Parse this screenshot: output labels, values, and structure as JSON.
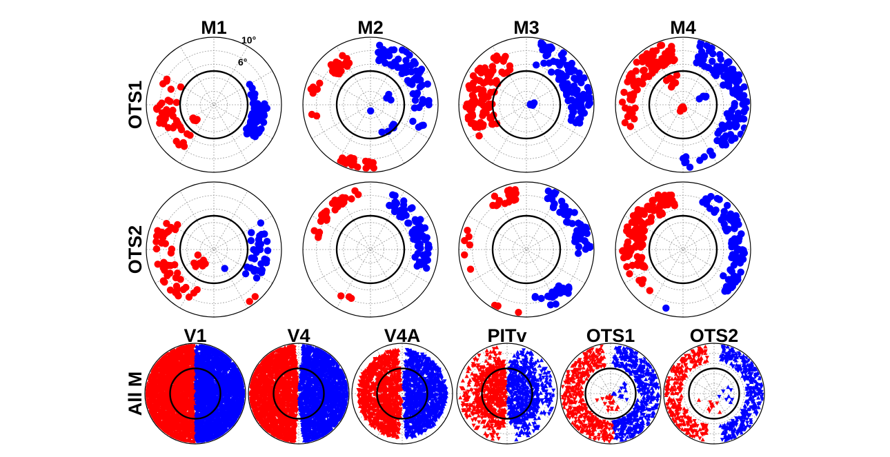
{
  "colors": {
    "contra": "#ff0000",
    "ipsi": "#0000ff",
    "ring": "#000000",
    "grid": "#9a9a9a"
  },
  "chart_data": {
    "type": "scatter",
    "coordinates": "polar",
    "rows": [
      "OTS1",
      "OTS2",
      "All M"
    ],
    "columns_top": [
      "M1",
      "M2",
      "M3",
      "M4"
    ],
    "columns_bottom": [
      "V1",
      "V4",
      "V4A",
      "PITv",
      "OTS1",
      "OTS2"
    ],
    "eccentricity_ticks": [
      "6°",
      "10°"
    ],
    "r_max_deg": 10,
    "reference_ring_deg": 5,
    "grid": true,
    "marker_top": "circle",
    "marker_bottom": "triangle",
    "panels": [
      {
        "row": "OTS1",
        "col": "M1",
        "clusters": [
          {
            "color": "contra",
            "n": 38,
            "ang": [
              150,
              235
            ],
            "rad": [
              5.5,
              8.6
            ]
          },
          {
            "color": "contra",
            "n": 6,
            "ang": [
              205,
              225
            ],
            "rad": [
              3.0,
              3.8
            ]
          },
          {
            "color": "ipsi",
            "n": 58,
            "ang": [
              -42,
              2
            ],
            "rad": [
              5.8,
              8.0
            ]
          },
          {
            "color": "ipsi",
            "n": 8,
            "ang": [
              5,
              30
            ],
            "rad": [
              5.5,
              6.3
            ]
          }
        ]
      },
      {
        "row": "OTS1",
        "col": "M2",
        "clusters": [
          {
            "color": "contra",
            "n": 26,
            "ang": [
              112,
              140
            ],
            "rad": [
              6.5,
              8.6
            ]
          },
          {
            "color": "contra",
            "n": 7,
            "ang": [
              150,
              195
            ],
            "rad": [
              8.0,
              9.3
            ]
          },
          {
            "color": "contra",
            "n": 24,
            "ang": [
              235,
              275
            ],
            "rad": [
              8.3,
              9.6
            ]
          },
          {
            "color": "ipsi",
            "n": 70,
            "ang": [
              -25,
              82
            ],
            "rad": [
              6.5,
              9.5
            ]
          },
          {
            "color": "ipsi",
            "n": 6,
            "ang": [
              -70,
              -40
            ],
            "rad": [
              4.0,
              6.0
            ]
          },
          {
            "color": "ipsi",
            "n": 3,
            "ang": [
              5,
              30
            ],
            "rad": [
              2.5,
              3.8
            ]
          },
          {
            "color": "ipsi",
            "n": 1,
            "ang": [
              -95,
              -85
            ],
            "rad": [
              0.8,
              1.2
            ]
          }
        ]
      },
      {
        "row": "OTS1",
        "col": "M3",
        "clusters": [
          {
            "color": "contra",
            "n": 95,
            "ang": [
              112,
              215
            ],
            "rad": [
              5.0,
              9.0
            ]
          },
          {
            "color": "ipsi",
            "n": 95,
            "ang": [
              -20,
              78
            ],
            "rad": [
              6.0,
              9.5
            ]
          },
          {
            "color": "ipsi",
            "n": 5,
            "ang": [
              -10,
              15
            ],
            "rad": [
              0.3,
              1.2
            ]
          }
        ]
      },
      {
        "row": "OTS1",
        "col": "M4",
        "clusters": [
          {
            "color": "contra",
            "n": 70,
            "ang": [
              100,
              160
            ],
            "rad": [
              6.5,
              9.5
            ]
          },
          {
            "color": "contra",
            "n": 18,
            "ang": [
              160,
              205
            ],
            "rad": [
              7.0,
              9.0
            ]
          },
          {
            "color": "contra",
            "n": 8,
            "ang": [
              100,
              130
            ],
            "rad": [
              3.0,
              5.0
            ]
          },
          {
            "color": "contra",
            "n": 8,
            "ang": [
              240,
              285
            ],
            "rad": [
              0.3,
              1.3
            ]
          },
          {
            "color": "ipsi",
            "n": 110,
            "ang": [
              -50,
              75
            ],
            "rad": [
              6.5,
              9.7
            ]
          },
          {
            "color": "ipsi",
            "n": 12,
            "ang": [
              -92,
              -55
            ],
            "rad": [
              7.5,
              9.5
            ]
          },
          {
            "color": "ipsi",
            "n": 4,
            "ang": [
              15,
              40
            ],
            "rad": [
              2.5,
              4.0
            ]
          }
        ]
      },
      {
        "row": "OTS2",
        "col": "M1",
        "clusters": [
          {
            "color": "contra",
            "n": 45,
            "ang": [
              145,
              255
            ],
            "rad": [
              6.2,
              8.8
            ]
          },
          {
            "color": "contra",
            "n": 8,
            "ang": [
              195,
              240
            ],
            "rad": [
              2.0,
              3.8
            ]
          },
          {
            "color": "contra",
            "n": 2,
            "ang": [
              302,
              312
            ],
            "rad": [
              9.0,
              9.6
            ]
          },
          {
            "color": "ipsi",
            "n": 32,
            "ang": [
              -40,
              30
            ],
            "rad": [
              5.5,
              8.0
            ]
          },
          {
            "color": "ipsi",
            "n": 1,
            "ang": [
              -65,
              -60
            ],
            "rad": [
              3.0,
              3.4
            ]
          }
        ]
      },
      {
        "row": "OTS2",
        "col": "M2",
        "clusters": [
          {
            "color": "contra",
            "n": 30,
            "ang": [
              102,
              172
            ],
            "rad": [
              7.8,
              9.0
            ]
          },
          {
            "color": "contra",
            "n": 3,
            "ang": [
              235,
              255
            ],
            "rad": [
              7.5,
              8.3
            ]
          },
          {
            "color": "ipsi",
            "n": 80,
            "ang": [
              -20,
              68
            ],
            "rad": [
              6.5,
              8.8
            ]
          }
        ]
      },
      {
        "row": "OTS2",
        "col": "M3",
        "clusters": [
          {
            "color": "contra",
            "n": 18,
            "ang": [
              100,
              130
            ],
            "rad": [
              7.5,
              9.2
            ]
          },
          {
            "color": "contra",
            "n": 6,
            "ang": [
              160,
              210
            ],
            "rad": [
              8.3,
              9.3
            ]
          },
          {
            "color": "contra",
            "n": 4,
            "ang": [
              240,
              268
            ],
            "rad": [
              9.2,
              9.7
            ]
          },
          {
            "color": "ipsi",
            "n": 55,
            "ang": [
              -5,
              72
            ],
            "rad": [
              7.0,
              9.6
            ]
          },
          {
            "color": "ipsi",
            "n": 20,
            "ang": [
              -85,
              -40
            ],
            "rad": [
              7.0,
              9.3
            ]
          }
        ]
      },
      {
        "row": "OTS2",
        "col": "M4",
        "clusters": [
          {
            "color": "contra",
            "n": 110,
            "ang": [
              100,
              205
            ],
            "rad": [
              6.0,
              9.0
            ]
          },
          {
            "color": "contra",
            "n": 4,
            "ang": [
              215,
              240
            ],
            "rad": [
              7.0,
              8.0
            ]
          },
          {
            "color": "ipsi",
            "n": 75,
            "ang": [
              -45,
              70
            ],
            "rad": [
              7.0,
              9.3
            ]
          },
          {
            "color": "ipsi",
            "n": 1,
            "ang": [
              -108,
              -100
            ],
            "rad": [
              8.8,
              9.2
            ]
          }
        ]
      },
      {
        "row": "All M",
        "col": "V1",
        "clusters": [
          {
            "color": "contra",
            "n": 2600,
            "ang": [
              91,
              269
            ],
            "rad": [
              0.0,
              9.8
            ],
            "fill": true
          },
          {
            "color": "ipsi",
            "n": 2600,
            "ang": [
              -89,
              89
            ],
            "rad": [
              0.0,
              9.8
            ],
            "fill": true
          }
        ]
      },
      {
        "row": "All M",
        "col": "V4",
        "clusters": [
          {
            "color": "contra",
            "n": 2000,
            "ang": [
              95,
              265
            ],
            "rad": [
              0.5,
              9.8
            ],
            "fill": true
          },
          {
            "color": "ipsi",
            "n": 2000,
            "ang": [
              -85,
              85
            ],
            "rad": [
              0.5,
              9.8
            ],
            "fill": true
          }
        ]
      },
      {
        "row": "All M",
        "col": "V4A",
        "clusters": [
          {
            "color": "contra",
            "n": 1100,
            "ang": [
              95,
              265
            ],
            "rad": [
              0.8,
              8.8
            ],
            "fill": true
          },
          {
            "color": "ipsi",
            "n": 1100,
            "ang": [
              -85,
              85
            ],
            "rad": [
              0.8,
              8.8
            ],
            "fill": true
          }
        ]
      },
      {
        "row": "All M",
        "col": "PITv",
        "clusters": [
          {
            "color": "contra",
            "n": 500,
            "ang": [
              95,
              265
            ],
            "rad": [
              0.5,
              6.5
            ],
            "fill": true
          },
          {
            "color": "ipsi",
            "n": 450,
            "ang": [
              -85,
              85
            ],
            "rad": [
              0.5,
              6.5
            ],
            "fill": true
          },
          {
            "color": "contra",
            "n": 150,
            "ang": [
              100,
              260
            ],
            "rad": [
              6.5,
              9.5
            ]
          },
          {
            "color": "ipsi",
            "n": 150,
            "ang": [
              -80,
              80
            ],
            "rad": [
              6.5,
              9.5
            ]
          }
        ]
      },
      {
        "row": "All M",
        "col": "OTS1",
        "clusters": [
          {
            "color": "contra",
            "n": 420,
            "ang": [
              100,
              275
            ],
            "rad": [
              5.5,
              9.7
            ]
          },
          {
            "color": "ipsi",
            "n": 480,
            "ang": [
              -85,
              85
            ],
            "rad": [
              5.5,
              9.7
            ]
          },
          {
            "color": "contra",
            "n": 20,
            "ang": [
              200,
              300
            ],
            "rad": [
              0.3,
              3.5
            ]
          },
          {
            "color": "ipsi",
            "n": 15,
            "ang": [
              -30,
              40
            ],
            "rad": [
              0.3,
              3.5
            ]
          }
        ]
      },
      {
        "row": "All M",
        "col": "OTS2",
        "clusters": [
          {
            "color": "contra",
            "n": 280,
            "ang": [
              100,
              260
            ],
            "rad": [
              6.5,
              9.7
            ]
          },
          {
            "color": "ipsi",
            "n": 330,
            "ang": [
              -80,
              80
            ],
            "rad": [
              6.5,
              9.7
            ]
          },
          {
            "color": "contra",
            "n": 10,
            "ang": [
              200,
              290
            ],
            "rad": [
              1.0,
              4.0
            ]
          },
          {
            "color": "ipsi",
            "n": 8,
            "ang": [
              -40,
              30
            ],
            "rad": [
              1.0,
              4.0
            ]
          }
        ]
      }
    ]
  }
}
